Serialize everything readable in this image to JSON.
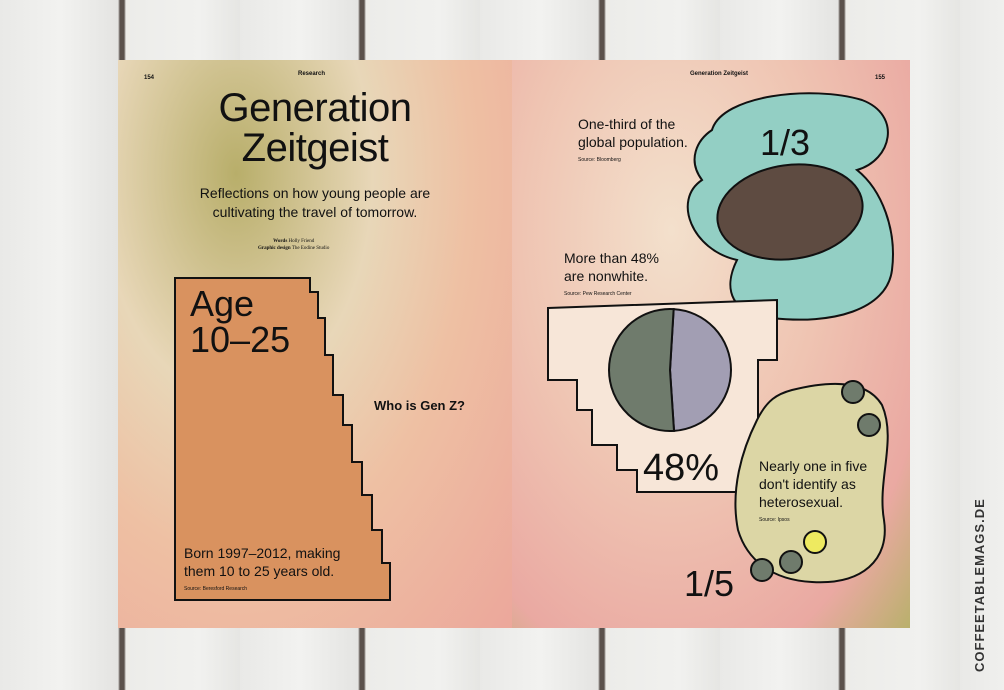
{
  "left_page": {
    "page_number": "154",
    "section": "Research",
    "title_line1": "Generation",
    "title_line2": "Zeitgeist",
    "subtitle_line1": "Reflections on how young people are",
    "subtitle_line2": "cultivating the travel of tomorrow.",
    "credits": [
      {
        "label": "Words",
        "value": "Holly Friend"
      },
      {
        "label": "Graphic design",
        "value": "The Eodine Studio"
      }
    ],
    "age_label": "Age",
    "age_range": "10–25",
    "question": "Who is Gen Z?",
    "born_line1": "Born 1997–2012, making",
    "born_line2": "them 10 to 25 years old.",
    "born_source": "Source: Beresford Research"
  },
  "right_page": {
    "page_number": "155",
    "section": "Generation Zeitgeist",
    "stat1": {
      "line1": "One-third of the",
      "line2": "global population.",
      "source": "Source: Bloomberg",
      "figure": "1/3"
    },
    "stat2": {
      "line1": "More than 48%",
      "line2": "are nonwhite.",
      "source": "Source: Pew Research Center",
      "figure": "48%",
      "pie_fraction": 0.48
    },
    "stat3": {
      "line1": "Nearly one in five",
      "line2": "don't identify as",
      "line3": "heterosexual.",
      "source": "Source: Ipsos",
      "figure": "1/5"
    }
  },
  "watermark": "COFFEETABLEMAGS.DE",
  "colors": {
    "teal": "#93cfc4",
    "brown": "#5e4b41",
    "orange": "#d9925f",
    "cream": "#f7e6d8",
    "olive": "#dcd6a5",
    "pie_green": "#6f7b6c",
    "pie_purple": "#a29eb3",
    "yellow": "#eeea60"
  }
}
